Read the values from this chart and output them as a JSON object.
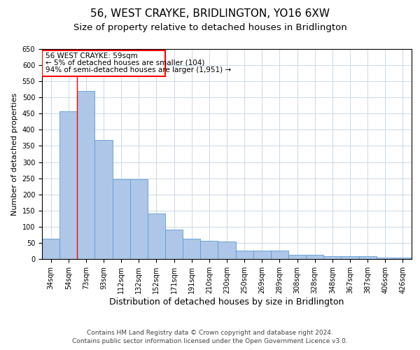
{
  "title": "56, WEST CRAYKE, BRIDLINGTON, YO16 6XW",
  "subtitle": "Size of property relative to detached houses in Bridlington",
  "xlabel": "Distribution of detached houses by size in Bridlington",
  "ylabel": "Number of detached properties",
  "categories": [
    "34sqm",
    "54sqm",
    "73sqm",
    "93sqm",
    "112sqm",
    "132sqm",
    "152sqm",
    "171sqm",
    "191sqm",
    "210sqm",
    "230sqm",
    "250sqm",
    "269sqm",
    "289sqm",
    "308sqm",
    "328sqm",
    "348sqm",
    "367sqm",
    "387sqm",
    "406sqm",
    "426sqm"
  ],
  "values": [
    62,
    457,
    521,
    368,
    248,
    248,
    140,
    91,
    62,
    57,
    54,
    26,
    26,
    26,
    12,
    12,
    8,
    8,
    8,
    5,
    5
  ],
  "bar_color": "#aec6e8",
  "bar_edge_color": "#5b9bd5",
  "grid_color": "#c8d8e8",
  "background_color": "#ffffff",
  "annotation_line1": "56 WEST CRAYKE: 59sqm",
  "annotation_line2": "← 5% of detached houses are smaller (104)",
  "annotation_line3": "94% of semi-detached houses are larger (1,951) →",
  "red_line_x": 1.5,
  "ylim": [
    0,
    650
  ],
  "yticks": [
    0,
    50,
    100,
    150,
    200,
    250,
    300,
    350,
    400,
    450,
    500,
    550,
    600,
    650
  ],
  "footer_line1": "Contains HM Land Registry data © Crown copyright and database right 2024.",
  "footer_line2": "Contains public sector information licensed under the Open Government Licence v3.0.",
  "title_fontsize": 11,
  "subtitle_fontsize": 9.5,
  "xlabel_fontsize": 9,
  "ylabel_fontsize": 8,
  "tick_fontsize": 7,
  "annotation_fontsize": 7.5,
  "footer_fontsize": 6.5
}
